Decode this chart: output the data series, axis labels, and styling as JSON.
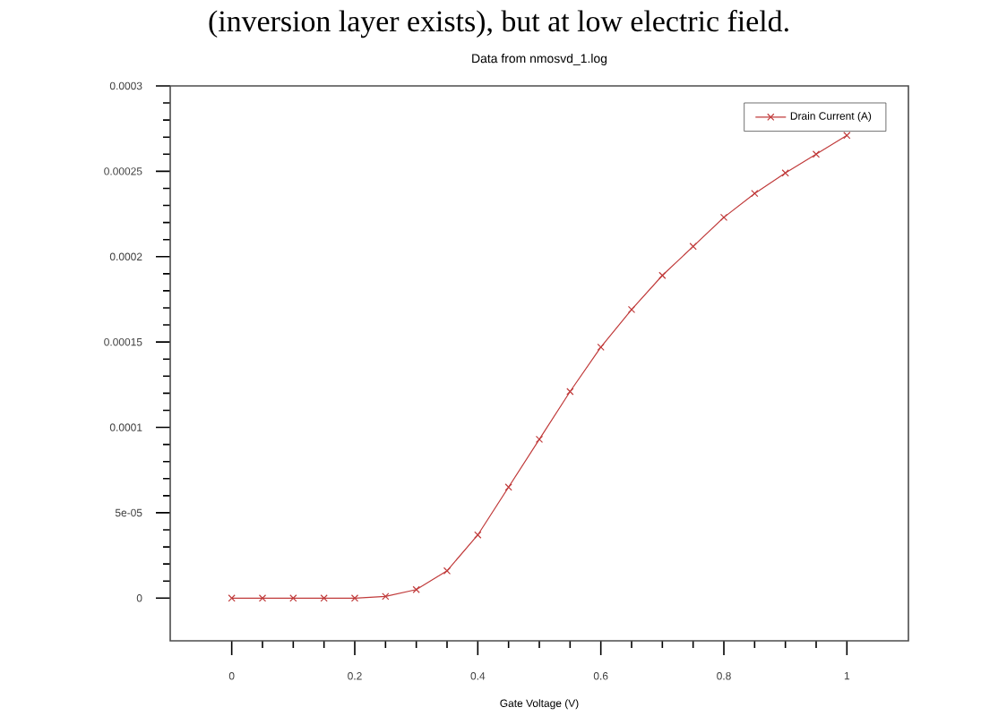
{
  "chart_data": {
    "type": "line",
    "title": "Data from nmosvd_1.log",
    "xlabel": "Gate Voltage (V)",
    "annotations": [
      "(inversion layer exists), but at low electric field."
    ],
    "x": [
      0,
      0.05,
      0.1,
      0.15,
      0.2,
      0.25,
      0.3,
      0.35,
      0.4,
      0.45,
      0.5,
      0.55,
      0.6,
      0.65,
      0.7,
      0.75,
      0.8,
      0.85,
      0.9,
      0.95,
      1
    ],
    "series": [
      {
        "name": "Drain Current (A)",
        "color": "#c03a3a",
        "values": [
          0,
          0,
          0,
          0,
          0,
          1e-06,
          5e-06,
          1.6e-05,
          3.7e-05,
          6.5e-05,
          9.3e-05,
          0.000121,
          0.000147,
          0.000169,
          0.000189,
          0.000206,
          0.000223,
          0.000237,
          0.000249,
          0.00026,
          0.000271
        ]
      }
    ],
    "xlim": [
      -0.1,
      1.1
    ],
    "ylim": [
      -2.5e-05,
      0.0003
    ],
    "xticks": [
      0,
      0.2,
      0.4,
      0.6,
      0.8,
      1
    ],
    "yticks": [
      0,
      {
        "value": 5e-05,
        "label": "5e-05"
      },
      0.0001,
      0.00015,
      0.0002,
      0.00025,
      0.0003
    ],
    "legend": "top right",
    "marker": "cross",
    "line_style": "solid"
  }
}
